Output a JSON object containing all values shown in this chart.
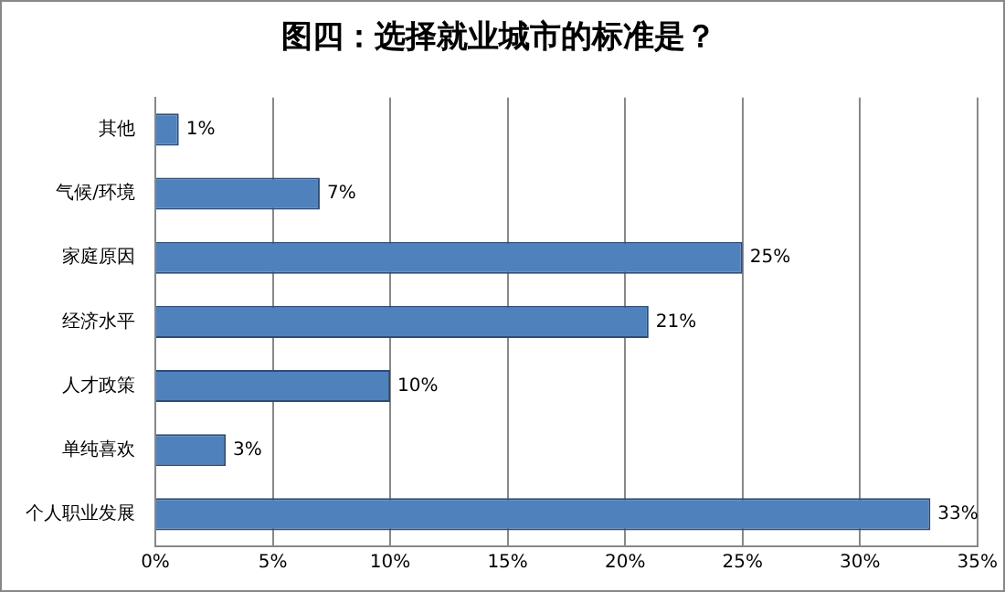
{
  "chart_data": {
    "type": "bar",
    "orientation": "horizontal",
    "title": "图四：选择就业城市的标准是？",
    "categories": [
      "其他",
      "气候/环境",
      "家庭原因",
      "经济水平",
      "人才政策",
      "单纯喜欢",
      "个人职业发展"
    ],
    "values": [
      1,
      7,
      25,
      21,
      10,
      3,
      33
    ],
    "value_labels": [
      "1%",
      "7%",
      "25%",
      "21%",
      "10%",
      "3%",
      "33%"
    ],
    "color": "#4f81bd",
    "xlim": [
      0,
      35
    ],
    "xticks": [
      {
        "value": 0,
        "label": "0%"
      },
      {
        "value": 5,
        "label": "5%"
      },
      {
        "value": 10,
        "label": "10%"
      },
      {
        "value": 15,
        "label": "15%"
      },
      {
        "value": 20,
        "label": "20%"
      },
      {
        "value": 25,
        "label": "25%"
      },
      {
        "value": 30,
        "label": "30%"
      },
      {
        "value": 35,
        "label": "35%"
      }
    ],
    "grid": "x",
    "legend": false
  }
}
